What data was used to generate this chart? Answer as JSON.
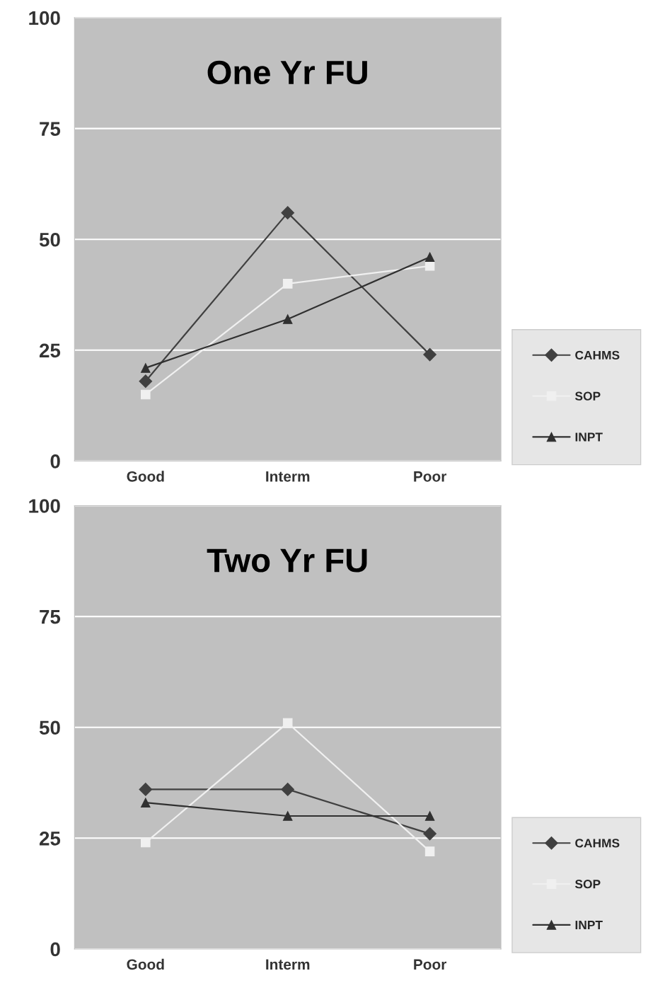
{
  "chart_data": [
    {
      "type": "line",
      "title": "One Yr FU",
      "categories": [
        "Good",
        "Interm",
        "Poor"
      ],
      "ylim": [
        0,
        100
      ],
      "yticks": [
        0,
        25,
        50,
        75,
        100
      ],
      "grid": "y",
      "legend": "right",
      "series": [
        {
          "name": "CAHMS",
          "color": "#404040",
          "marker": "diamond",
          "values": [
            18,
            56,
            24
          ]
        },
        {
          "name": "SOP",
          "color": "#f0f0f0",
          "marker": "square",
          "values": [
            15,
            40,
            44
          ]
        },
        {
          "name": "INPT",
          "color": "#303030",
          "marker": "triangle",
          "values": [
            21,
            32,
            46
          ]
        }
      ]
    },
    {
      "type": "line",
      "title": "Two Yr FU",
      "categories": [
        "Good",
        "Interm",
        "Poor"
      ],
      "ylim": [
        0,
        100
      ],
      "yticks": [
        0,
        25,
        50,
        75,
        100
      ],
      "grid": "y",
      "legend": "right",
      "series": [
        {
          "name": "CAHMS",
          "color": "#404040",
          "marker": "diamond",
          "values": [
            36,
            36,
            26
          ]
        },
        {
          "name": "SOP",
          "color": "#f0f0f0",
          "marker": "square",
          "values": [
            24,
            51,
            22
          ]
        },
        {
          "name": "INPT",
          "color": "#303030",
          "marker": "triangle",
          "values": [
            33,
            30,
            30
          ]
        }
      ]
    }
  ]
}
